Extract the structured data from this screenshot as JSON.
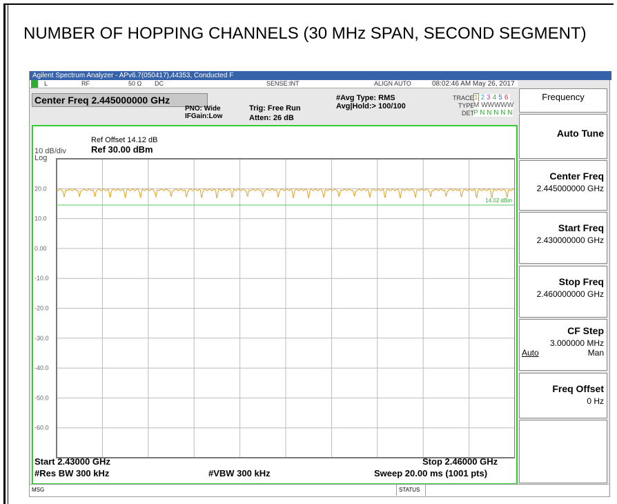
{
  "header": {
    "title": "NUMBER OF HOPPING CHANNELS (30 MHz SPAN, SECOND SEGMENT)"
  },
  "window_title": "Agilent Spectrum Analyzer - APv6.7(050417),44353, Conducted F",
  "status_row": {
    "items": [
      "L",
      "RF",
      "50 Ω",
      "DC",
      "SENSE:INT",
      "ALIGN AUTO"
    ],
    "datetime": "08:02:46 AM May 26, 2017"
  },
  "center_freq_box": "Center Freq 2.445000000 GHz",
  "settings": {
    "pno": "PNO: Wide",
    "ifgain": "IFGain:Low",
    "trig": "Trig: Free Run",
    "atten": "Atten: 26 dB",
    "avg_type": "#Avg Type: RMS",
    "avg_hold": "Avg|Hold:> 100/100"
  },
  "trace_panel": {
    "trace_label": "TRACE",
    "traces": [
      "1",
      "2",
      "3",
      "4",
      "5",
      "6"
    ],
    "type_label": "TYPE",
    "types": "M WWWWW",
    "det_label": "DET",
    "dets": "P N N N N N"
  },
  "display": {
    "ref_offset": "Ref Offset 14.12 dB",
    "ref_level": "Ref 30.00 dBm",
    "scale": "10 dB/div",
    "mode": "Log",
    "y_labels": [
      "20.0",
      "10.0",
      "0.00",
      "-10.0",
      "-20.0",
      "-30.0",
      "-40.0",
      "-50.0",
      "-60.0"
    ],
    "display_line_label": "14.02 dBm"
  },
  "footer": {
    "start": "Start 2.43000 GHz",
    "stop": "Stop 2.46000 GHz",
    "rbw": "#Res BW 300 kHz",
    "vbw": "#VBW 300 kHz",
    "sweep": "Sweep  20.00 ms (1001 pts)"
  },
  "message_bar": {
    "msg": "MSG",
    "status": "STATUS"
  },
  "softkeys": {
    "menu": "Frequency",
    "keys": [
      {
        "label": "Auto Tune"
      },
      {
        "label": "Center Freq",
        "value": "2.445000000 GHz"
      },
      {
        "label": "Start Freq",
        "value": "2.430000000 GHz"
      },
      {
        "label": "Stop Freq",
        "value": "2.460000000 GHz"
      },
      {
        "label": "CF Step",
        "value": "3.000000 MHz",
        "left": "Auto",
        "right": "Man"
      },
      {
        "label": "Freq Offset",
        "value": "0 Hz"
      }
    ]
  }
}
